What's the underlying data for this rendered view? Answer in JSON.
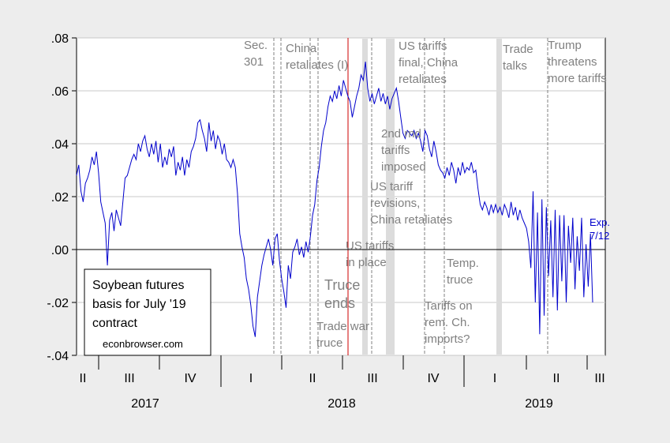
{
  "chart_data": {
    "type": "line",
    "title": "",
    "xlabel": "",
    "ylabel": "",
    "ylim": [
      -0.04,
      0.08
    ],
    "yticks": [
      ".08",
      ".06",
      ".04",
      ".02",
      ".00",
      "-.02",
      "-.04"
    ],
    "ytick_values": [
      0.08,
      0.06,
      0.04,
      0.02,
      0.0,
      -0.02,
      -0.04
    ],
    "quarter_ticks": [
      "II",
      "III",
      "IV",
      "I",
      "II",
      "III",
      "IV",
      "I",
      "II",
      "III"
    ],
    "years": [
      "2017",
      "2018",
      "2019"
    ],
    "grid": true,
    "legend_box": {
      "lines": [
        "Soybean futures",
        "basis for July '19",
        "contract"
      ],
      "source": "econbrowser.com"
    },
    "line_color": "#0000cc",
    "event_line_color": "#808080",
    "red_line_color": "#cc0000",
    "annotations": {
      "sec301": [
        "Sec.",
        "301"
      ],
      "china_retaliates": [
        "China",
        "retaliates (I)"
      ],
      "us_tariffs_final": [
        "US tariffs",
        "final, China",
        "retaliates"
      ],
      "trade_talks": [
        "Trade",
        "talks"
      ],
      "trump_threatens": [
        "Trump",
        "threatens",
        "more tariffs"
      ],
      "second_round": [
        "2nd rnd",
        "tariffs",
        "imposed"
      ],
      "us_tariff_revisions": [
        "US tariff",
        "revisions,",
        "China retaliates"
      ],
      "us_tariffs_in_place": [
        "US tariffs",
        "in place"
      ],
      "temp_truce": [
        "Temp.",
        "truce"
      ],
      "truce_ends": [
        "Truce",
        "ends"
      ],
      "tariffs_on_rem": [
        "Tariffs on",
        "rem. Ch.",
        "imports?"
      ],
      "trade_war_truce": [
        "Trade war",
        "truce"
      ],
      "exp": [
        "Exp.",
        "7/12"
      ]
    },
    "series": [
      {
        "values": [
          0.028,
          0.032,
          0.022,
          0.018,
          0.025,
          0.027,
          0.03,
          0.035,
          0.032,
          0.037,
          0.029,
          0.018,
          0.014,
          0.01,
          -0.006,
          0.011,
          0.014,
          0.007,
          0.015,
          0.012,
          0.009,
          0.018,
          0.027,
          0.028,
          0.031,
          0.034,
          0.036,
          0.034,
          0.04,
          0.037,
          0.041,
          0.043,
          0.038,
          0.035,
          0.04,
          0.036,
          0.041,
          0.033,
          0.04,
          0.031,
          0.035,
          0.032,
          0.038,
          0.035,
          0.039,
          0.028,
          0.033,
          0.03,
          0.035,
          0.028,
          0.034,
          0.031,
          0.037,
          0.039,
          0.042,
          0.048,
          0.049,
          0.045,
          0.042,
          0.037,
          0.048,
          0.041,
          0.045,
          0.038,
          0.043,
          0.041,
          0.036,
          0.04,
          0.034,
          0.033,
          0.031,
          0.034,
          0.031,
          0.021,
          0.006,
          0.001,
          -0.003,
          -0.011,
          -0.015,
          -0.021,
          -0.029,
          -0.033,
          -0.018,
          -0.012,
          -0.006,
          -0.002,
          0.001,
          0.004,
          0.0,
          -0.006,
          0.004,
          0.006,
          -0.004,
          -0.011,
          -0.016,
          -0.022,
          -0.006,
          -0.011,
          -0.001,
          0.001,
          0.004,
          -0.002,
          0.001,
          -0.003,
          0.003,
          -0.001,
          0.005,
          0.013,
          0.017,
          0.026,
          0.031,
          0.039,
          0.045,
          0.048,
          0.054,
          0.058,
          0.056,
          0.06,
          0.057,
          0.062,
          0.058,
          0.064,
          0.061,
          0.058,
          0.056,
          0.05,
          0.054,
          0.058,
          0.061,
          0.066,
          0.064,
          0.071,
          0.061,
          0.056,
          0.059,
          0.055,
          0.058,
          0.061,
          0.056,
          0.059,
          0.055,
          0.058,
          0.053,
          0.057,
          0.059,
          0.061,
          0.056,
          0.05,
          0.044,
          0.042,
          0.045,
          0.044,
          0.043,
          0.045,
          0.042,
          0.044,
          0.041,
          0.037,
          0.045,
          0.043,
          0.038,
          0.035,
          0.041,
          0.037,
          0.032,
          0.03,
          0.029,
          0.027,
          0.031,
          0.028,
          0.033,
          0.03,
          0.025,
          0.031,
          0.028,
          0.033,
          0.029,
          0.031,
          0.03,
          0.033,
          0.029,
          0.03,
          0.023,
          0.017,
          0.015,
          0.018,
          0.016,
          0.013,
          0.017,
          0.014,
          0.017,
          0.014,
          0.016,
          0.013,
          0.017,
          0.015,
          0.012,
          0.018,
          0.013,
          0.016,
          0.011,
          0.015,
          0.012,
          0.01,
          0.008,
          0.003,
          -0.007,
          0.022,
          -0.02,
          0.014,
          -0.032,
          0.019,
          -0.025,
          0.016,
          -0.01,
          0.011,
          -0.018,
          0.015,
          -0.023,
          0.013,
          -0.012,
          0.013,
          -0.02,
          0.009,
          -0.005,
          0.012,
          -0.015,
          0.005,
          -0.008,
          0.012,
          -0.018,
          0.002,
          -0.014,
          0.006,
          -0.02
        ]
      }
    ]
  }
}
